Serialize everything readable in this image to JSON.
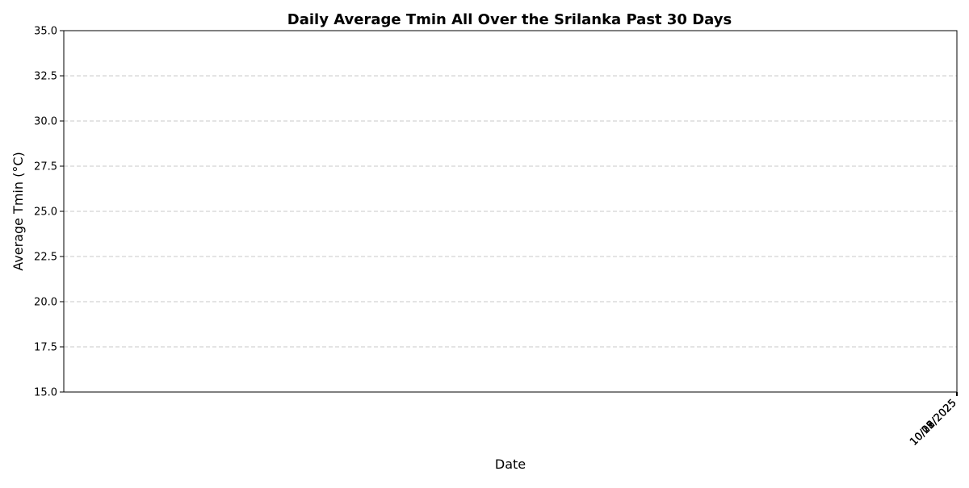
{
  "chart_data": {
    "type": "line",
    "title": "Daily Average Tmin All Over the Srilanka Past 30 Days",
    "xlabel": "Date",
    "ylabel": "Average Tmin (°C)",
    "ylim": [
      15,
      35
    ],
    "yticks": [
      "15.0",
      "17.5",
      "20.0",
      "22.5",
      "25.0",
      "27.5",
      "30.0",
      "32.5",
      "35.0"
    ],
    "x_tick_labels": [
      "10/01/2025",
      "10/08/2025",
      "10/15/2025",
      "10/22/2025",
      "10/29/2025"
    ],
    "x_tick_labels_note_overlap": true,
    "grid": "y-dashed",
    "series": [
      {
        "x": [],
        "y": []
      }
    ]
  }
}
